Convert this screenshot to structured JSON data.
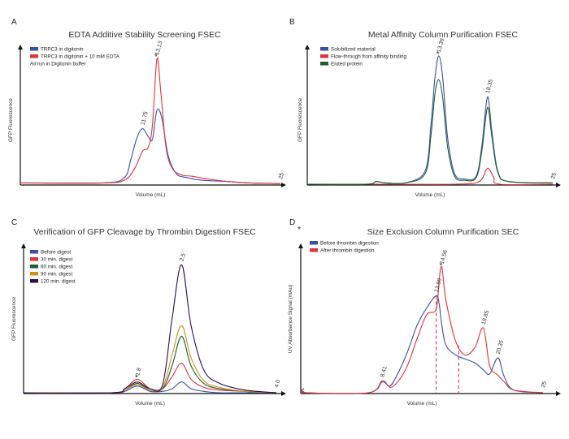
{
  "figure": {
    "extra_star": "*",
    "panels": [
      {
        "id": "A",
        "letter": "A",
        "title": "EDTA Additive Stability Screening FSEC",
        "xlabel": "Volume (mL)",
        "ylabel": "GFP Fluorescence",
        "legend": [
          {
            "label": "TRPC3 in digitonin",
            "color": "#3b4fa8"
          },
          {
            "label": "TRPC3 in digitonin + 10 mM EDTA",
            "color": "#e0333a"
          }
        ],
        "note": "All run in Digitonin buffer"
      },
      {
        "id": "B",
        "letter": "B",
        "title": "Metal Affinity Column Purification FSEC",
        "xlabel": "Volume (mL)",
        "ylabel": "GFP Fluorescence",
        "legend": [
          {
            "label": "Solubilized material",
            "color": "#3b4fa8"
          },
          {
            "label": "Flow-through from affinity binding",
            "color": "#e0333a"
          },
          {
            "label": "Eluted protein",
            "color": "#1f5e2e"
          }
        ]
      },
      {
        "id": "C",
        "letter": "C",
        "title": "Verification of GFP Cleavage by Thrombin Digestion FSEC",
        "xlabel": "Volume (mL)",
        "ylabel": "GFP Fluorescence",
        "legend": [
          {
            "label": "Before digest",
            "color": "#3b4fa8"
          },
          {
            "label": "30 min. digest",
            "color": "#e0333a"
          },
          {
            "label": "60 min. digest",
            "color": "#1f5e2e"
          },
          {
            "label": "90 min. digest",
            "color": "#c9961a"
          },
          {
            "label": "120 min. digest",
            "color": "#2b1050"
          }
        ]
      },
      {
        "id": "D",
        "letter": "D",
        "title": "Size Exclusion Column Purification SEC",
        "xlabel": "Volume (mL)",
        "ylabel": "UV Absorbance Signal (mAu)",
        "legend": [
          {
            "label": "Before thrombin digestion",
            "color": "#3b4fa8"
          },
          {
            "label": "After thrombin digestion",
            "color": "#e0333a"
          }
        ]
      }
    ]
  },
  "chart_data": [
    {
      "panel": "A",
      "type": "line",
      "title": "EDTA Additive Stability Screening FSEC",
      "xlabel": "Volume (mL)",
      "ylabel": "GFP Fluorescence",
      "xlim": [
        0,
        25
      ],
      "ylim": [
        0,
        1
      ],
      "series": [
        {
          "name": "TRPC3 in digitonin",
          "color": "#3b4fa8",
          "x": [
            0,
            8,
            10,
            10.6,
            11.2,
            11.75,
            12.3,
            12.7,
            13.13,
            13.6,
            14.2,
            15,
            16,
            17.5,
            20,
            22,
            25
          ],
          "y": [
            0.01,
            0.01,
            0.05,
            0.18,
            0.35,
            0.42,
            0.36,
            0.34,
            0.56,
            0.5,
            0.22,
            0.08,
            0.05,
            0.03,
            0.02,
            0.01,
            0.005
          ]
        },
        {
          "name": "TRPC3 in digitonin + 10 mM EDTA",
          "color": "#e0333a",
          "x": [
            0,
            8,
            10,
            11,
            11.75,
            12.3,
            12.7,
            13.13,
            13.5,
            14,
            14.6,
            15.5,
            16.5,
            18,
            20,
            22,
            25
          ],
          "y": [
            0.01,
            0.01,
            0.03,
            0.12,
            0.25,
            0.28,
            0.45,
            0.95,
            0.7,
            0.28,
            0.12,
            0.07,
            0.06,
            0.04,
            0.02,
            0.01,
            0.005
          ]
        }
      ],
      "peaks": [
        {
          "x": 11.75,
          "label": "11.75"
        },
        {
          "x": 13.13,
          "label": "13.13",
          "star": "*"
        },
        {
          "x": 25,
          "label": "25"
        }
      ]
    },
    {
      "panel": "B",
      "type": "line",
      "title": "Metal Affinity Column Purification FSEC",
      "xlabel": "Volume (mL)",
      "ylabel": "GFP Fluorescence",
      "xlim": [
        0,
        25
      ],
      "ylim": [
        0,
        1
      ],
      "series": [
        {
          "name": "Solubilized material",
          "color": "#3b4fa8",
          "x": [
            0,
            6,
            7,
            8,
            10,
            12,
            12.6,
            13.0,
            13.39,
            13.8,
            14.3,
            15,
            16,
            17.2,
            17.8,
            18.35,
            18.8,
            19.4,
            20.5,
            25
          ],
          "y": [
            0.0,
            0.0,
            0.02,
            0.01,
            0.01,
            0.1,
            0.45,
            0.8,
            0.97,
            0.8,
            0.35,
            0.08,
            0.04,
            0.06,
            0.3,
            0.66,
            0.4,
            0.1,
            0.02,
            0.01
          ]
        },
        {
          "name": "Flow-through from affinity binding",
          "color": "#e0333a",
          "x": [
            0,
            8,
            15,
            17.5,
            18.35,
            19.0,
            19.6,
            25
          ],
          "y": [
            0.0,
            0.0,
            0.0,
            0.02,
            0.12,
            0.05,
            0.0,
            0.0
          ]
        },
        {
          "name": "Eluted protein",
          "color": "#1f5e2e",
          "x": [
            0,
            6,
            7,
            8,
            10,
            12,
            12.6,
            13.0,
            13.39,
            13.8,
            14.3,
            15,
            16,
            17.2,
            17.8,
            18.35,
            18.8,
            19.4,
            20.5,
            25
          ],
          "y": [
            0.0,
            0.0,
            0.02,
            0.01,
            0.01,
            0.08,
            0.37,
            0.68,
            0.79,
            0.65,
            0.28,
            0.06,
            0.03,
            0.05,
            0.26,
            0.58,
            0.36,
            0.09,
            0.02,
            0.01
          ]
        }
      ],
      "peaks": [
        {
          "x": 13.39,
          "label": "13.39",
          "star": "*"
        },
        {
          "x": 18.35,
          "label": "18.35"
        },
        {
          "x": 25,
          "label": "25"
        }
      ]
    },
    {
      "panel": "C",
      "type": "line",
      "title": "Verification of GFP Cleavage by Thrombin Digestion FSEC",
      "xlabel": "Volume (mL)",
      "ylabel": "GFP Fluorescence",
      "xlim": [
        0,
        4.0
      ],
      "ylim": [
        0,
        1
      ],
      "series": [
        {
          "name": "Before digest",
          "color": "#3b4fa8",
          "x": [
            0,
            1.4,
            1.6,
            1.8,
            2.0,
            2.2,
            2.35,
            2.5,
            2.65,
            2.85,
            3.1,
            3.5,
            4.0
          ],
          "y": [
            0.0,
            0.0,
            0.01,
            0.05,
            0.01,
            0.01,
            0.03,
            0.08,
            0.03,
            0.01,
            0.0,
            0.0,
            0.0
          ]
        },
        {
          "name": "30 min. digest",
          "color": "#e0333a",
          "x": [
            0,
            1.4,
            1.6,
            1.8,
            2.0,
            2.2,
            2.35,
            2.5,
            2.65,
            2.85,
            3.1,
            3.5,
            4.0
          ],
          "y": [
            0.0,
            0.0,
            0.03,
            0.1,
            0.03,
            0.03,
            0.12,
            0.22,
            0.1,
            0.04,
            0.02,
            0.01,
            0.0
          ]
        },
        {
          "name": "60 min. digest",
          "color": "#1f5e2e",
          "x": [
            0,
            1.4,
            1.6,
            1.8,
            2.0,
            2.2,
            2.35,
            2.5,
            2.65,
            2.85,
            3.1,
            3.5,
            4.0
          ],
          "y": [
            0.0,
            0.0,
            0.02,
            0.07,
            0.02,
            0.03,
            0.2,
            0.42,
            0.2,
            0.07,
            0.03,
            0.01,
            0.0
          ]
        },
        {
          "name": "90 min. digest",
          "color": "#c9961a",
          "x": [
            0,
            1.4,
            1.6,
            1.8,
            2.0,
            2.2,
            2.35,
            2.5,
            2.65,
            2.85,
            3.1,
            3.5,
            4.0
          ],
          "y": [
            0.0,
            0.0,
            0.02,
            0.06,
            0.02,
            0.04,
            0.28,
            0.5,
            0.26,
            0.09,
            0.04,
            0.01,
            0.0
          ]
        },
        {
          "name": "120 min. digest",
          "color": "#2b1050",
          "x": [
            0,
            1.4,
            1.6,
            1.8,
            2.0,
            2.2,
            2.35,
            2.5,
            2.65,
            2.85,
            3.1,
            3.5,
            4.0
          ],
          "y": [
            0.0,
            0.0,
            0.03,
            0.08,
            0.03,
            0.06,
            0.55,
            0.95,
            0.5,
            0.17,
            0.07,
            0.02,
            0.0
          ]
        }
      ],
      "peaks": [
        {
          "x": 1.8,
          "label": "1.8",
          "star": "*"
        },
        {
          "x": 2.5,
          "label": "2.5"
        },
        {
          "x": 4.0,
          "label": "4.0"
        }
      ]
    },
    {
      "panel": "D",
      "type": "line",
      "title": "Size Exclusion Column Purification SEC",
      "xlabel": "Volume (mL)",
      "ylabel": "UV Absorbance Signal (mAu)",
      "xlim": [
        0,
        25
      ],
      "ylim": [
        0,
        1
      ],
      "series": [
        {
          "name": "Before thrombin digestion",
          "color": "#3b4fa8",
          "x": [
            0,
            0.3,
            0.6,
            7,
            8.41,
            9.2,
            10,
            11,
            12,
            13,
            13.98,
            14.3,
            14.56,
            15,
            16,
            17,
            18.0,
            18.85,
            19.5,
            20.35,
            21,
            22,
            25
          ],
          "y": [
            0.0,
            0.03,
            0.0,
            0.0,
            0.08,
            0.05,
            0.14,
            0.3,
            0.5,
            0.63,
            0.72,
            0.65,
            0.5,
            0.35,
            0.28,
            0.25,
            0.22,
            0.17,
            0.14,
            0.26,
            0.12,
            0.02,
            0.0
          ]
        },
        {
          "name": "After thrombin digestion",
          "color": "#e0333a",
          "x": [
            0,
            0.3,
            0.6,
            7,
            8.41,
            9.2,
            10,
            11,
            12,
            13,
            13.98,
            14.3,
            14.56,
            15,
            16,
            17,
            18.0,
            18.85,
            19.5,
            20.35,
            21,
            22,
            25
          ],
          "y": [
            0.0,
            0.01,
            0.0,
            0.0,
            0.09,
            0.04,
            0.08,
            0.2,
            0.4,
            0.58,
            0.62,
            0.85,
            0.93,
            0.68,
            0.38,
            0.28,
            0.34,
            0.48,
            0.2,
            0.13,
            0.08,
            0.02,
            0.0
          ]
        }
      ],
      "peaks": [
        {
          "x": 8.41,
          "label": "8.41"
        },
        {
          "x": 13.98,
          "label": "13.98"
        },
        {
          "x": 14.56,
          "label": "14.56",
          "star": "*"
        },
        {
          "x": 18.85,
          "label": "18.85"
        },
        {
          "x": 20.35,
          "label": "20.35"
        },
        {
          "x": 25,
          "label": "25"
        }
      ],
      "dashed_markers": [
        13.98,
        16.3
      ]
    }
  ]
}
